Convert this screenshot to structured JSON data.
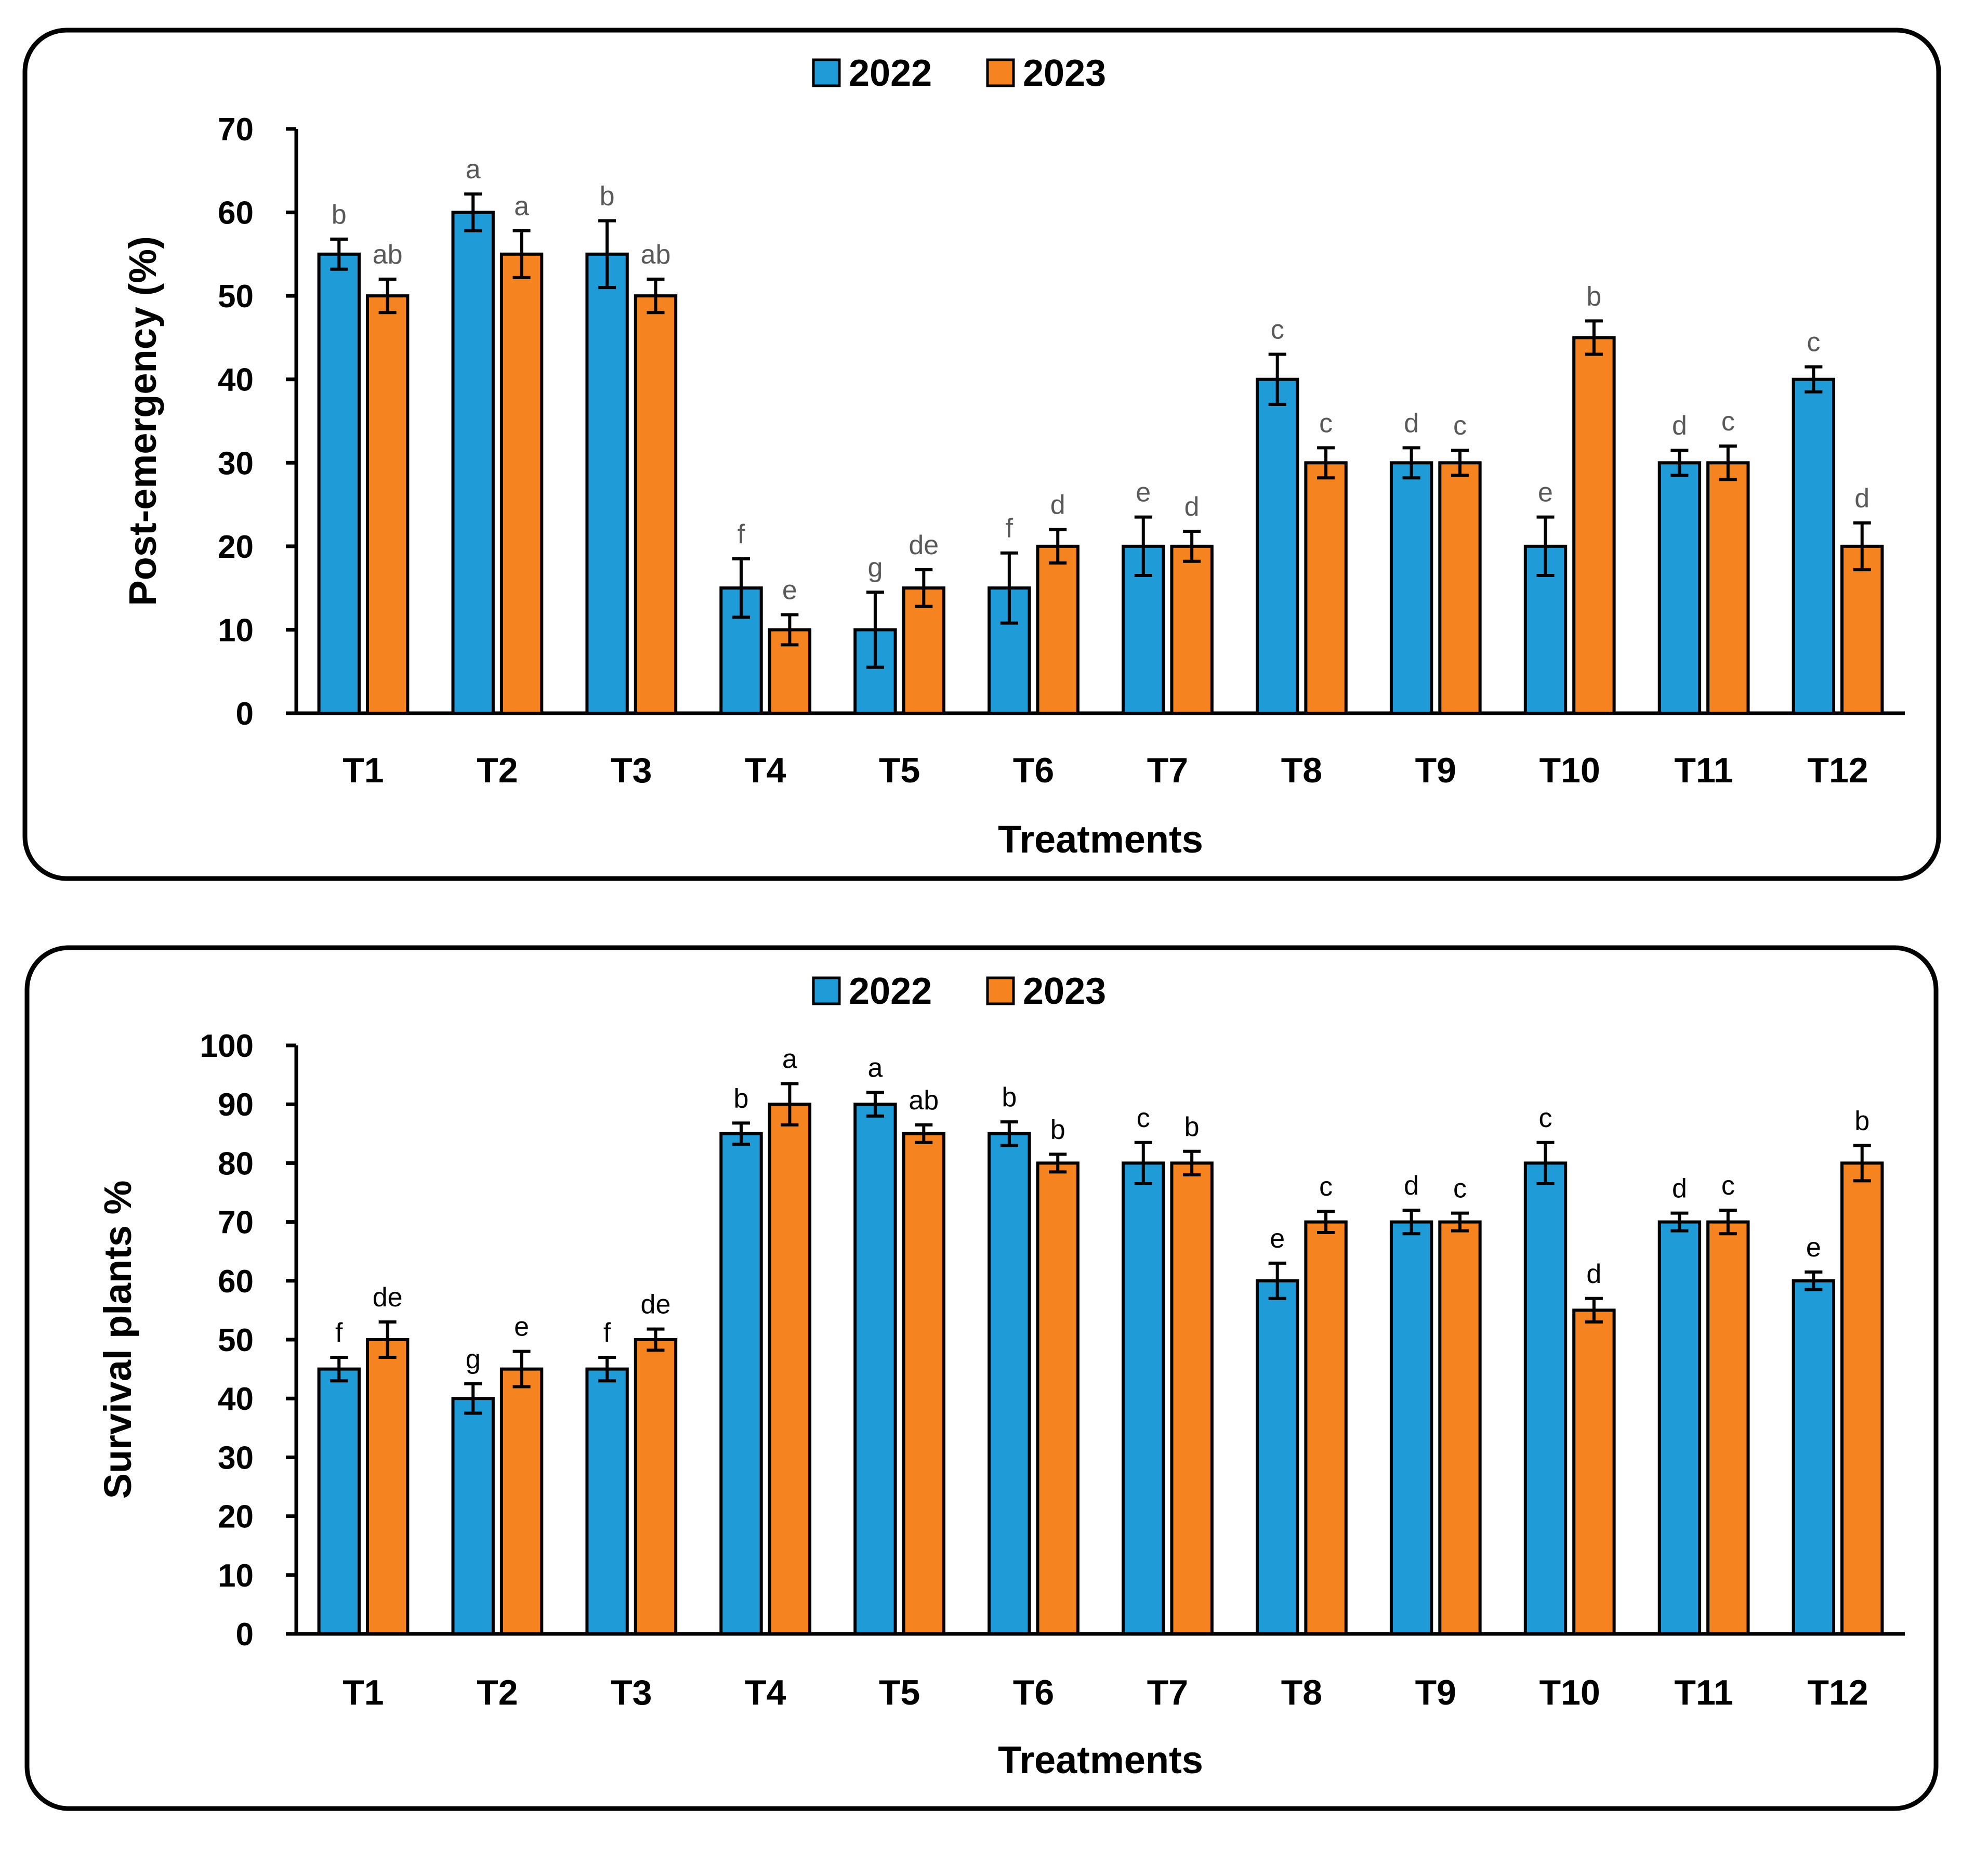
{
  "charts": [
    {
      "id": "post-emergency",
      "chart_data": {
        "type": "bar",
        "title": "",
        "xlabel": "Treatments",
        "ylabel": "Post-emergency  (%)",
        "ylim": [
          0,
          70
        ],
        "yticks": [
          "0",
          "10",
          "20",
          "30",
          "40",
          "50",
          "60",
          "70"
        ],
        "categories": [
          "T1",
          "T2",
          "T3",
          "T4",
          "T5",
          "T6",
          "T7",
          "T8",
          "T9",
          "T10",
          "T11",
          "T12"
        ],
        "legend_position": "top-center",
        "series": [
          {
            "name": "2022",
            "color": "#1f9bd7",
            "values": [
              55,
              60,
              55,
              15,
              10,
              15,
              20,
              40,
              30,
              20,
              30,
              40
            ],
            "errors": [
              1.8,
              2.2,
              4.0,
              3.5,
              4.5,
              4.2,
              3.5,
              3.0,
              1.8,
              3.5,
              1.5,
              1.5
            ],
            "letters": [
              "b",
              "a",
              "b",
              "f",
              "g",
              "f",
              "e",
              "c",
              "d",
              "e",
              "d",
              "c"
            ]
          },
          {
            "name": "2023",
            "color": "#f58320",
            "values": [
              50,
              55,
              50,
              10,
              15,
              20,
              20,
              30,
              30,
              45,
              30,
              20
            ],
            "errors": [
              2.0,
              2.8,
              2.0,
              1.8,
              2.2,
              2.0,
              1.8,
              1.8,
              1.5,
              2.0,
              2.0,
              2.8
            ],
            "letters": [
              "ab",
              "a",
              "ab",
              "e",
              "de",
              "d",
              "d",
              "c",
              "c",
              "b",
              "c",
              "d"
            ]
          }
        ]
      }
    },
    {
      "id": "survival-plants",
      "chart_data": {
        "type": "bar",
        "title": "",
        "xlabel": "Treatments",
        "ylabel": "Survival plants %",
        "ylim": [
          0,
          100
        ],
        "yticks": [
          "0",
          "10",
          "20",
          "30",
          "40",
          "50",
          "60",
          "70",
          "80",
          "90",
          "100"
        ],
        "categories": [
          "T1",
          "T2",
          "T3",
          "T4",
          "T5",
          "T6",
          "T7",
          "T8",
          "T9",
          "T10",
          "T11",
          "T12"
        ],
        "legend_position": "top-center",
        "series": [
          {
            "name": "2022",
            "color": "#1f9bd7",
            "values": [
              45,
              40,
              45,
              85,
              90,
              85,
              80,
              60,
              70,
              80,
              70,
              60
            ],
            "errors": [
              2.0,
              2.5,
              2.0,
              1.8,
              2.0,
              2.0,
              3.5,
              3.0,
              2.0,
              3.5,
              1.5,
              1.5
            ],
            "letters": [
              "f",
              "g",
              "f",
              "b",
              "a",
              "b",
              "c",
              "e",
              "d",
              "c",
              "d",
              "e"
            ]
          },
          {
            "name": "2023",
            "color": "#f58320",
            "values": [
              50,
              45,
              50,
              90,
              85,
              80,
              80,
              70,
              70,
              55,
              70,
              80
            ],
            "errors": [
              3.0,
              3.0,
              1.8,
              3.5,
              1.5,
              1.5,
              2.0,
              1.8,
              1.5,
              2.0,
              2.0,
              3.0
            ],
            "letters": [
              "de",
              "e",
              "de",
              "a",
              "ab",
              "b",
              "b",
              "c",
              "c",
              "d",
              "c",
              "b"
            ]
          }
        ]
      }
    }
  ]
}
